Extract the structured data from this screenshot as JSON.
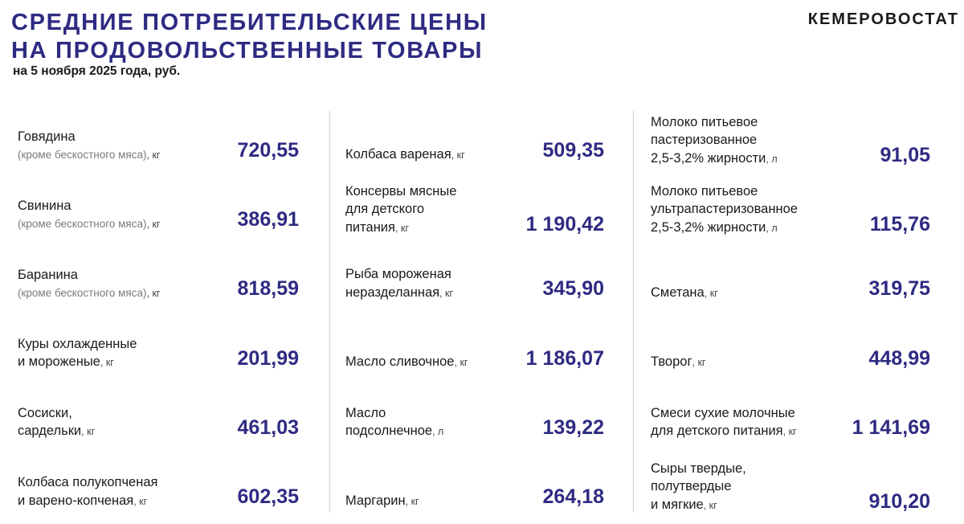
{
  "header": {
    "title_line1": "СРЕДНИЕ ПОТРЕБИТЕЛЬСКИЕ ЦЕНЫ",
    "title_line2": "НА ПРОДОВОЛЬСТВЕННЫЕ ТОВАРЫ",
    "subtitle": "на 5 ноября 2025 года, руб.",
    "brand": "КЕМЕРОВОСТАТ"
  },
  "colors": {
    "accent": "#2e2b82",
    "text": "#1a1a1a",
    "muted": "#7a7a7a",
    "divider": "#cfcfcf"
  },
  "columns": [
    {
      "items": [
        {
          "lines": [
            "Говядина"
          ],
          "qualifier": "(кроме бескостного мяса)",
          "unit": "кг",
          "price": "720,55"
        },
        {
          "lines": [
            "Свинина"
          ],
          "qualifier": "(кроме бескостного мяса)",
          "unit": "кг",
          "price": "386,91"
        },
        {
          "lines": [
            "Баранина"
          ],
          "qualifier": "(кроме бескостного мяса)",
          "unit": "кг",
          "price": "818,59"
        },
        {
          "lines": [
            "Куры охлажденные",
            "и мороженые"
          ],
          "unit": "кг",
          "price": "201,99"
        },
        {
          "lines": [
            "Сосиски,",
            "сардельки"
          ],
          "unit": "кг",
          "price": "461,03"
        },
        {
          "lines": [
            "Колбаса полукопченая",
            "и варено-копченая"
          ],
          "unit": "кг",
          "price": "602,35"
        }
      ]
    },
    {
      "items": [
        {
          "lines": [
            "Колбаса вареная"
          ],
          "unit": "кг",
          "price": "509,35"
        },
        {
          "lines": [
            "Консервы мясные",
            "для детского",
            "питания"
          ],
          "unit": "кг",
          "price": "1 190,42"
        },
        {
          "lines": [
            "Рыба мороженая",
            "неразделанная"
          ],
          "unit": "кг",
          "price": "345,90"
        },
        {
          "lines": [
            "Масло сливочное"
          ],
          "unit": "кг",
          "price": "1 186,07"
        },
        {
          "lines": [
            "Масло",
            "подсолнечное"
          ],
          "unit": "л",
          "price": "139,22"
        },
        {
          "lines": [
            "Маргарин"
          ],
          "unit": "кг",
          "price": "264,18"
        }
      ]
    },
    {
      "items": [
        {
          "lines": [
            "Молоко питьевое",
            "пастеризованное",
            "2,5-3,2% жирности"
          ],
          "unit": "л",
          "price": "91,05"
        },
        {
          "lines": [
            "Молоко питьевое",
            "ультрапастеризованное",
            "2,5-3,2% жирности"
          ],
          "unit": "л",
          "price": "115,76"
        },
        {
          "lines": [
            "Сметана"
          ],
          "unit": "кг",
          "price": "319,75"
        },
        {
          "lines": [
            "Творог"
          ],
          "unit": "кг",
          "price": "448,99"
        },
        {
          "lines": [
            "Смеси сухие молочные",
            "для детского питания"
          ],
          "unit": "кг",
          "price": "1 141,69"
        },
        {
          "lines": [
            "Сыры твердые,",
            "полутвердые",
            "и мягкие"
          ],
          "unit": "кг",
          "price": "910,20"
        }
      ]
    }
  ]
}
